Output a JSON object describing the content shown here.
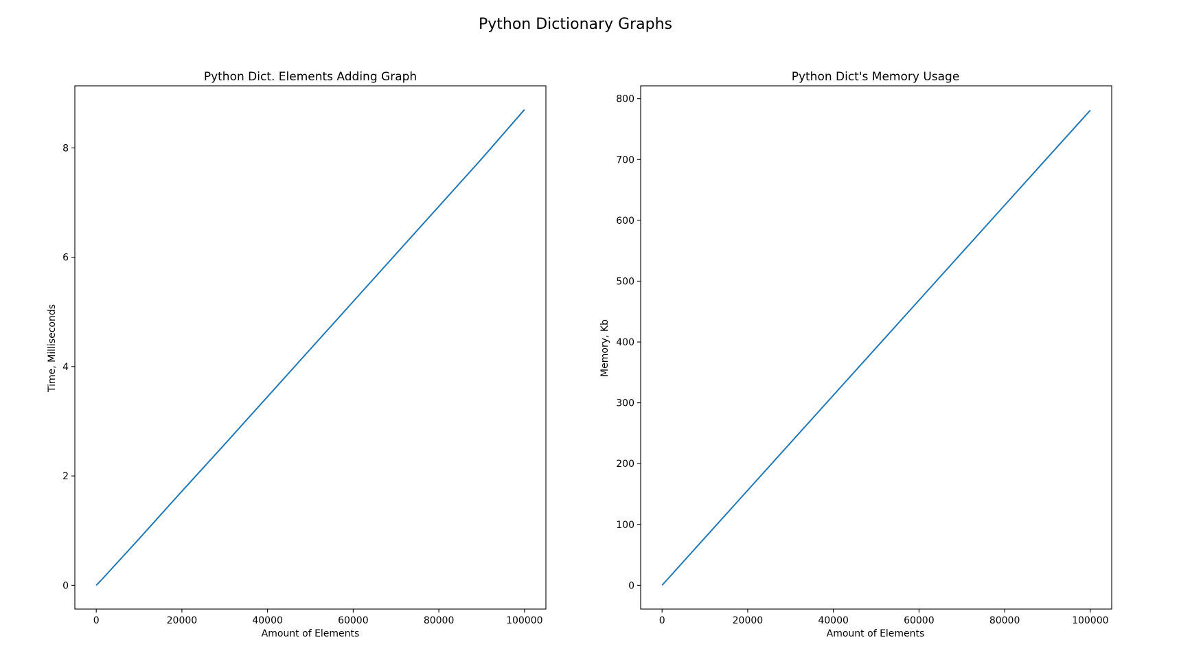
{
  "figure": {
    "suptitle": "Python Dictionary Graphs"
  },
  "chart_data": [
    {
      "type": "line",
      "title": "Python Dict. Elements Adding Graph",
      "xlabel": "Amount of Elements",
      "ylabel": "Time, Milliseconds",
      "xlim": [
        -5000,
        105000
      ],
      "ylim": [
        -0.435,
        9.135
      ],
      "xticks": [
        0,
        20000,
        40000,
        60000,
        80000,
        100000
      ],
      "yticks": [
        0,
        2,
        4,
        6,
        8
      ],
      "grid": false,
      "series": [
        {
          "color": "#1f77b4",
          "x": [
            0,
            1000,
            10000,
            20000,
            30000,
            40000,
            50000,
            60000,
            70000,
            80000,
            90000,
            100000
          ],
          "y": [
            0,
            0.08,
            0.85,
            1.72,
            2.58,
            3.45,
            4.32,
            5.19,
            6.06,
            6.93,
            7.8,
            8.7
          ]
        }
      ]
    },
    {
      "type": "line",
      "title": "Python Dict's Memory Usage",
      "xlabel": "Amount of Elements",
      "ylabel": "Memory, Kb",
      "xlim": [
        -5000,
        105000
      ],
      "ylim": [
        -39.1,
        821.1
      ],
      "xticks": [
        0,
        20000,
        40000,
        60000,
        80000,
        100000
      ],
      "yticks": [
        0,
        100,
        200,
        300,
        400,
        500,
        600,
        700,
        800
      ],
      "grid": false,
      "series": [
        {
          "color": "#1f77b4",
          "x": [
            0,
            10000,
            20000,
            30000,
            40000,
            50000,
            60000,
            70000,
            80000,
            90000,
            100000
          ],
          "y": [
            0,
            78.1,
            156.2,
            234.3,
            312.4,
            390.5,
            468.6,
            546.7,
            624.8,
            702.9,
            781
          ]
        }
      ]
    }
  ]
}
